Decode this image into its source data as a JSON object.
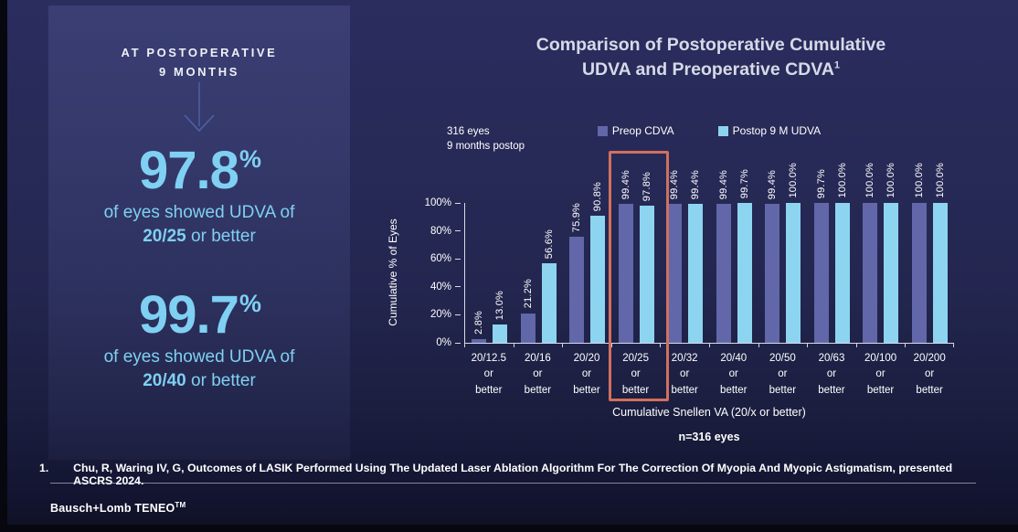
{
  "left_panel": {
    "heading": [
      "AT POSTOPERATIVE",
      "9 MONTHS"
    ],
    "stats": [
      {
        "value": "97.8",
        "unit": "%",
        "line1": "of eyes showed UDVA of",
        "acuity": "20/25",
        "rest": " or better"
      },
      {
        "value": "99.7",
        "unit": "%",
        "line1": "of eyes showed UDVA of",
        "acuity": "20/40",
        "rest": " or better"
      }
    ]
  },
  "chart": {
    "title_line1": "Comparison of Postoperative Cumulative",
    "title_line2": "UDVA and Preoperative CDVA",
    "title_footnote_ref": "1",
    "sample_note_line1": "316 eyes",
    "sample_note_line2": "9 months postop"
  },
  "chart_data": {
    "type": "bar",
    "title": "Comparison of Postoperative Cumulative UDVA and Preoperative CDVA",
    "categories": [
      "20/12.5",
      "20/16",
      "20/20",
      "20/25",
      "20/32",
      "20/40",
      "20/50",
      "20/63",
      "20/100",
      "20/200"
    ],
    "tick_suffix_lines": [
      "or",
      "better"
    ],
    "series": [
      {
        "name": "Preop CDVA",
        "color": "#6167a8",
        "values": [
          2.8,
          21.2,
          75.9,
          99.4,
          99.4,
          99.4,
          99.4,
          99.7,
          100.0,
          100.0
        ]
      },
      {
        "name": "Postop 9 M UDVA",
        "color": "#8dd4f0",
        "values": [
          13.0,
          56.6,
          90.8,
          97.8,
          99.4,
          99.7,
          100.0,
          100.0,
          100.0,
          100.0
        ]
      }
    ],
    "ylabel": "Cumulative % of Eyes",
    "xlabel": "Cumulative Snellen VA (20/x or better)",
    "n_label": "n=316 eyes",
    "yticks": [
      "0%",
      "20%",
      "40%",
      "60%",
      "80%",
      "100%"
    ],
    "ylim": [
      0,
      100
    ],
    "grid": false,
    "legend_position": "top",
    "value_label_suffix": "%",
    "highlight_category": "20/25",
    "highlight_color": "#d1705e"
  },
  "footnote": {
    "number": "1.",
    "text": "Chu, R, Waring IV, G, Outcomes of LASIK Performed Using The Updated Laser Ablation Algorithm For The Correction Of Myopia And Myopic Astigmatism, presented ASCRS 2024."
  },
  "brand": {
    "name": "Bausch+Lomb TENEO",
    "tm": "TM"
  },
  "colors": {
    "accent_blue": "#7fd0f2",
    "bar_purple": "#6167a8",
    "bar_blue": "#8dd4f0",
    "highlight": "#d1705e",
    "arrow": "#4b5da0"
  }
}
